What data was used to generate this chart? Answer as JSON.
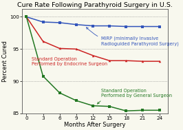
{
  "title": "Cure Rate Following Parathyroid Surgery in U.S.",
  "xlabel": "Months After Surgery",
  "ylabel": "Percent Cured",
  "x": [
    0,
    3,
    6,
    9,
    12,
    15,
    18,
    21,
    24
  ],
  "mirp": [
    100,
    99.2,
    99.1,
    98.8,
    98.6,
    98.6,
    98.5,
    98.5,
    98.5
  ],
  "endocrine": [
    100,
    96.2,
    95.1,
    95.0,
    94.0,
    93.2,
    93.2,
    93.1,
    93.1
  ],
  "general": [
    100,
    90.8,
    88.2,
    87.0,
    86.2,
    86.1,
    85.4,
    85.5,
    85.5
  ],
  "mirp_color": "#3355bb",
  "endocrine_color": "#cc2222",
  "general_color": "#227722",
  "ylim": [
    85,
    101.2
  ],
  "xlim": [
    -0.8,
    25.5
  ],
  "yticks": [
    85,
    90,
    95,
    100
  ],
  "xticks": [
    0,
    3,
    6,
    9,
    12,
    15,
    18,
    21,
    24
  ],
  "bg_color": "#f8f8ee",
  "annotation_mirp_line1": "MIRP (minimally Invasive",
  "annotation_mirp_line2": "Radioguided Parathyroid Surgery)",
  "annotation_endocrine_line1": "Standard Operation",
  "annotation_endocrine_line2": "Performed by Endocrine Surgeon",
  "annotation_general_line1": "Standard Operation",
  "annotation_general_line2": "Performed by General Surgeon",
  "title_fontsize": 6.8,
  "label_fontsize": 6.0,
  "tick_fontsize": 5.2,
  "annot_fontsize": 4.8
}
